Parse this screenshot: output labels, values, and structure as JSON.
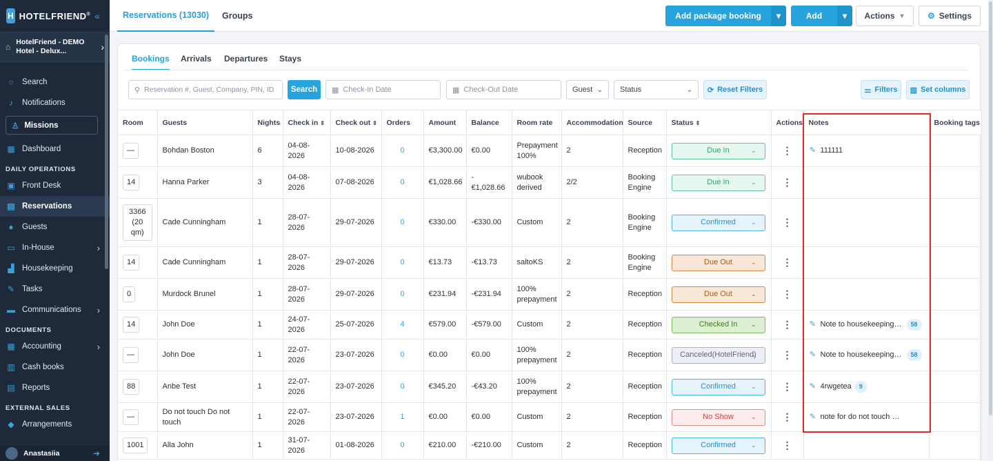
{
  "app": {
    "logo": "HOTELFRIEND",
    "logo_reg": "®"
  },
  "hotel": {
    "name": "HotelFriend - DEMO Hotel - Delux..."
  },
  "sidebar": {
    "search": "Search",
    "notifications": "Notifications",
    "missions": "Missions",
    "dashboard": "Dashboard",
    "section_daily": "DAILY OPERATIONS",
    "front_desk": "Front Desk",
    "reservations": "Reservations",
    "guests": "Guests",
    "in_house": "In-House",
    "housekeeping": "Housekeeping",
    "tasks": "Tasks",
    "communications": "Communications",
    "section_documents": "DOCUMENTS",
    "accounting": "Accounting",
    "cash_books": "Cash books",
    "reports": "Reports",
    "section_external": "EXTERNAL SALES",
    "arrangements": "Arrangements"
  },
  "user": {
    "name": "Anastasiia"
  },
  "top_tabs": {
    "reservations": "Reservations (13030)",
    "groups": "Groups"
  },
  "toolbar": {
    "add_package": "Add package booking",
    "add": "Add",
    "actions": "Actions",
    "settings": "Settings"
  },
  "sub_tabs": {
    "bookings": "Bookings",
    "arrivals": "Arrivals",
    "departures": "Departures",
    "stays": "Stays"
  },
  "filters": {
    "search_placeholder": "Reservation #, Guest, Company, PIN, ID",
    "search_button": "Search",
    "checkin_placeholder": "Check-In Date",
    "checkout_placeholder": "Check-Out Date",
    "guest": "Guest",
    "status": "Status",
    "reset": "Reset Filters",
    "filters": "Filters",
    "set_columns": "Set columns"
  },
  "columns": {
    "room": "Room",
    "guests": "Guests",
    "nights": "Nights",
    "check_in": "Check in",
    "check_out": "Check out",
    "orders": "Orders",
    "amount": "Amount",
    "balance": "Balance",
    "room_rate": "Room rate",
    "accommodation": "Accommodation",
    "source": "Source",
    "status": "Status",
    "actions": "Actions",
    "notes": "Notes",
    "booking_tags": "Booking tags"
  },
  "rows": [
    {
      "room": "—",
      "guest": "Bohdan Boston",
      "nights": "6",
      "check_in": "04-08-2026",
      "check_out": "10-08-2026",
      "orders": "0",
      "amount": "€3,300.00",
      "balance": "€0.00",
      "rate": "Prepayment 100%",
      "accommodation": "2",
      "source": "Reception",
      "status": "Due In",
      "status_class": "st-duein",
      "note": "111111",
      "note_badge": ""
    },
    {
      "room": "14",
      "guest": "Hanna Parker",
      "nights": "3",
      "check_in": "04-08-2026",
      "check_out": "07-08-2026",
      "orders": "0",
      "amount": "€1,028.66",
      "balance": "-€1,028.66",
      "rate": "wubook derived",
      "accommodation": "2/2",
      "source": "Booking Engine",
      "status": "Due In",
      "status_class": "st-duein",
      "note": "",
      "note_badge": ""
    },
    {
      "room": "3366 (20 qm)",
      "guest": "Cade Cunningham",
      "nights": "1",
      "check_in": "28-07-2026",
      "check_out": "29-07-2026",
      "orders": "0",
      "amount": "€330.00",
      "balance": "-€330.00",
      "rate": "Custom",
      "accommodation": "2",
      "source": "Booking Engine",
      "status": "Confirmed",
      "status_class": "st-confirmed",
      "note": "",
      "note_badge": ""
    },
    {
      "room": "14",
      "guest": "Cade Cunningham",
      "nights": "1",
      "check_in": "28-07-2026",
      "check_out": "29-07-2026",
      "orders": "0",
      "amount": "€13.73",
      "balance": "-€13.73",
      "rate": "saltoKS",
      "accommodation": "2",
      "source": "Booking Engine",
      "status": "Due Out",
      "status_class": "st-dueout",
      "note": "",
      "note_badge": ""
    },
    {
      "room": "0",
      "guest": "Murdock Brunel",
      "nights": "1",
      "check_in": "28-07-2026",
      "check_out": "29-07-2026",
      "orders": "0",
      "amount": "€231.94",
      "balance": "-€231.94",
      "rate": "100% prepayment",
      "accommodation": "2",
      "source": "Reception",
      "status": "Due Out",
      "status_class": "st-dueout",
      "note": "",
      "note_badge": ""
    },
    {
      "room": "14",
      "guest": "John Doe",
      "nights": "1",
      "check_in": "24-07-2026",
      "check_out": "25-07-2026",
      "orders": "4",
      "amount": "€579.00",
      "balance": "-€579.00",
      "rate": "Custom",
      "accommodation": "2",
      "source": "Reception",
      "status": "Checked In",
      "status_class": "st-checkedin",
      "note": "Note to housekeeping J...",
      "note_badge": "58"
    },
    {
      "room": "—",
      "guest": "John Doe",
      "nights": "1",
      "check_in": "22-07-2026",
      "check_out": "23-07-2026",
      "orders": "0",
      "amount": "€0.00",
      "balance": "€0.00",
      "rate": "100% prepayment",
      "accommodation": "2",
      "source": "Reception",
      "status": "Canceled(HotelFriend)",
      "status_class": "st-canceled",
      "note": "Note to housekeeping J...",
      "note_badge": "58"
    },
    {
      "room": "88",
      "guest": "Anbe Test",
      "nights": "1",
      "check_in": "22-07-2026",
      "check_out": "23-07-2026",
      "orders": "0",
      "amount": "€345.20",
      "balance": "-€43.20",
      "rate": "100% prepayment",
      "accommodation": "2",
      "source": "Reception",
      "status": "Confirmed",
      "status_class": "st-confirmed",
      "note": "4rwgetea",
      "note_badge": "9"
    },
    {
      "room": "—",
      "guest": "Do not touch Do not touch",
      "nights": "1",
      "check_in": "22-07-2026",
      "check_out": "23-07-2026",
      "orders": "1",
      "amount": "€0.00",
      "balance": "€0.00",
      "rate": "Custom",
      "accommodation": "2",
      "source": "Reception",
      "status": "No Show",
      "status_class": "st-noshow",
      "note": "note for do not touch guest",
      "note_badge": ""
    },
    {
      "room": "1001",
      "guest": "Alla John",
      "nights": "1",
      "check_in": "31-07-2026",
      "check_out": "01-08-2026",
      "orders": "0",
      "amount": "€210.00",
      "balance": "-€210.00",
      "rate": "Custom",
      "accommodation": "2",
      "source": "Reception",
      "status": "Confirmed",
      "status_class": "st-confirmed",
      "note": "",
      "note_badge": ""
    }
  ]
}
